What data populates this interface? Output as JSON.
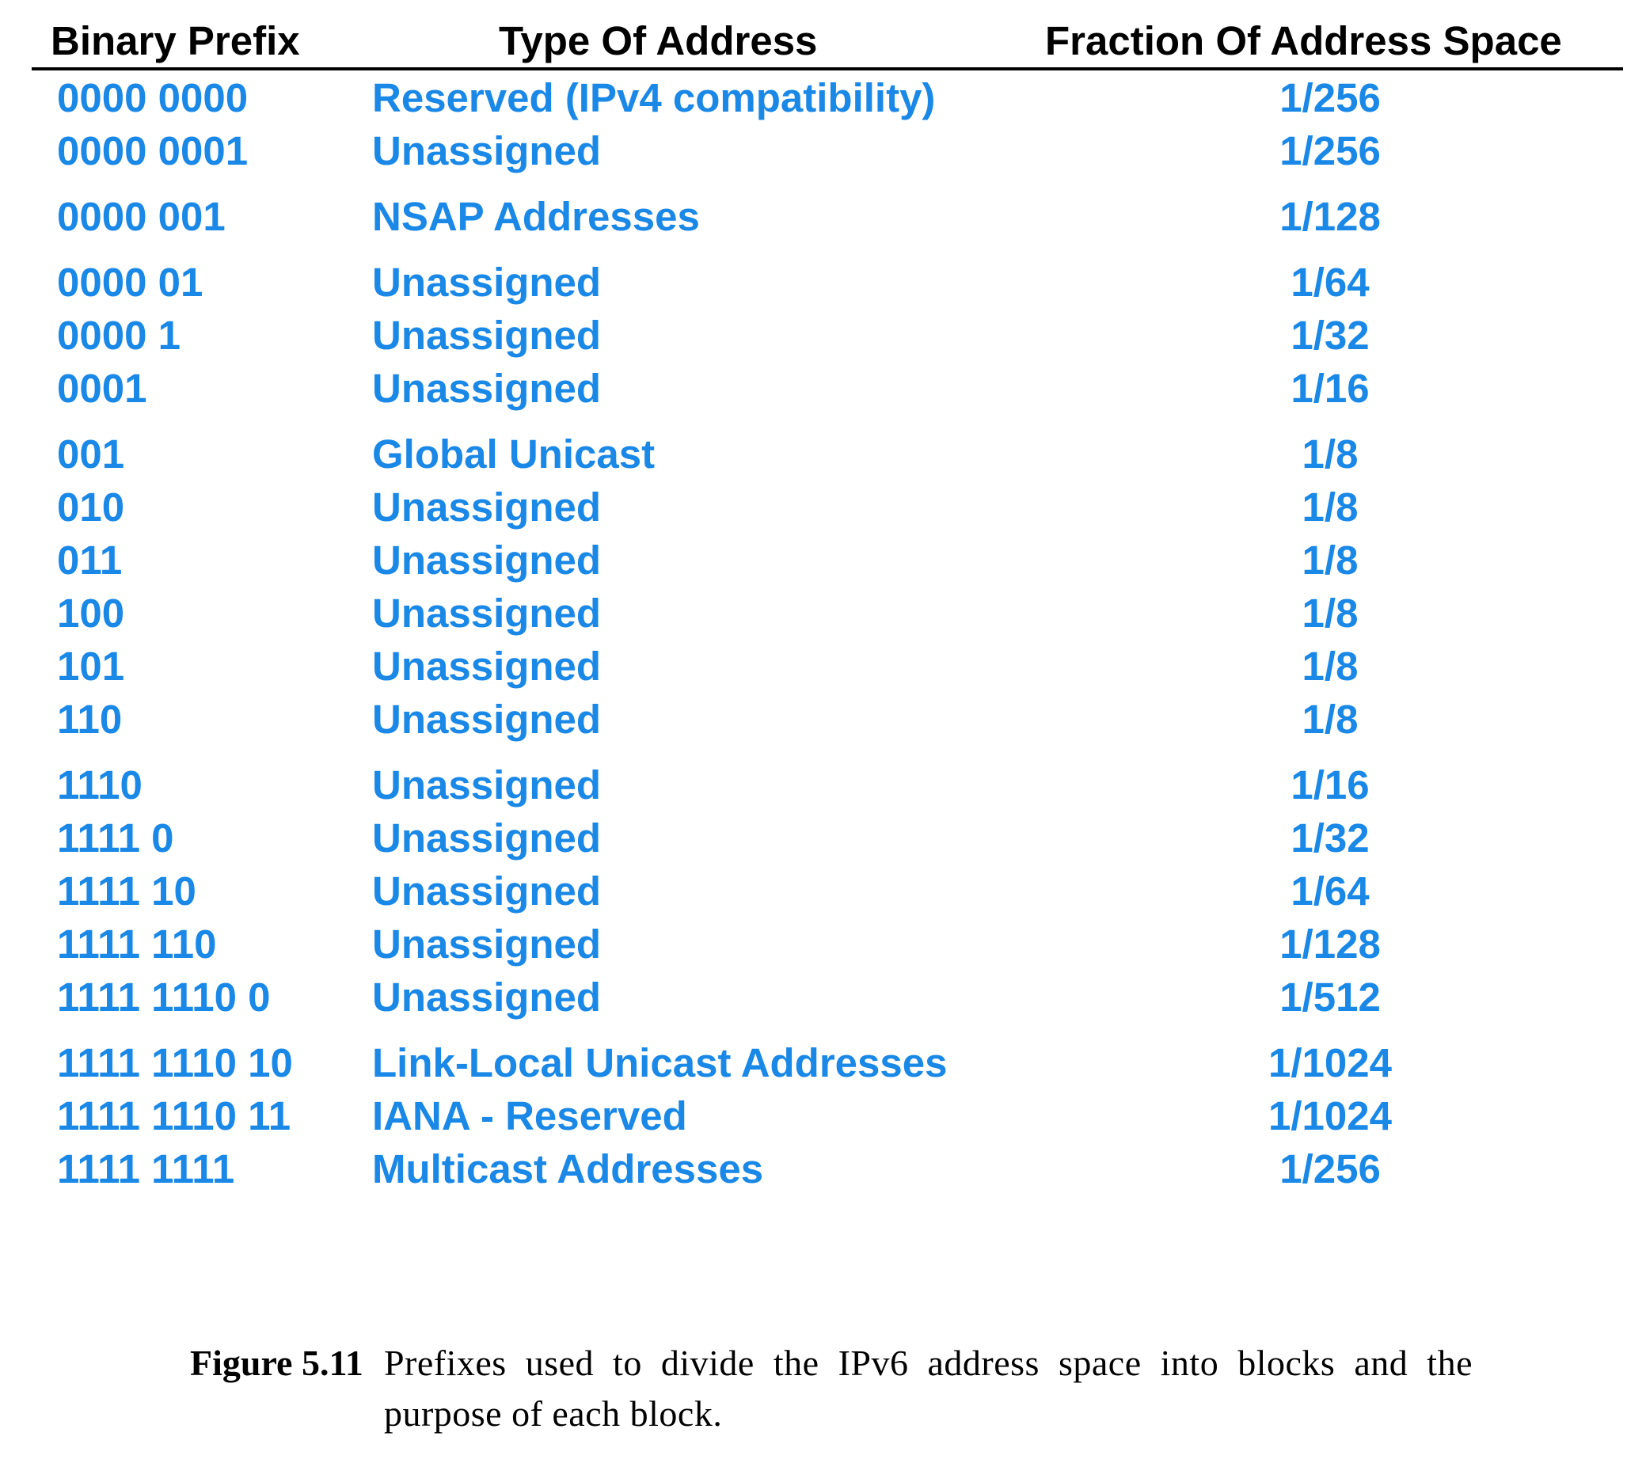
{
  "headers": {
    "prefix": "Binary Prefix",
    "type": "Type Of Address",
    "fraction": "Fraction Of Address Space"
  },
  "groups": [
    [
      {
        "prefix": "0000 0000",
        "type": "Reserved (IPv4 compatibility)",
        "fraction": "1/256"
      },
      {
        "prefix": "0000 0001",
        "type": "Unassigned",
        "fraction": "1/256"
      }
    ],
    [
      {
        "prefix": "0000 001",
        "type": "NSAP Addresses",
        "fraction": "1/128"
      }
    ],
    [
      {
        "prefix": "0000 01",
        "type": "Unassigned",
        "fraction": "1/64"
      },
      {
        "prefix": "0000 1",
        "type": "Unassigned",
        "fraction": "1/32"
      },
      {
        "prefix": "0001",
        "type": "Unassigned",
        "fraction": "1/16"
      }
    ],
    [
      {
        "prefix": "001",
        "type": "Global Unicast",
        "fraction": "1/8"
      },
      {
        "prefix": "010",
        "type": "Unassigned",
        "fraction": "1/8"
      },
      {
        "prefix": "011",
        "type": "Unassigned",
        "fraction": "1/8"
      },
      {
        "prefix": "100",
        "type": "Unassigned",
        "fraction": "1/8"
      },
      {
        "prefix": "101",
        "type": "Unassigned",
        "fraction": "1/8"
      },
      {
        "prefix": "110",
        "type": "Unassigned",
        "fraction": "1/8"
      }
    ],
    [
      {
        "prefix": "1110",
        "type": "Unassigned",
        "fraction": "1/16"
      },
      {
        "prefix": "1111 0",
        "type": "Unassigned",
        "fraction": "1/32"
      },
      {
        "prefix": "1111 10",
        "type": "Unassigned",
        "fraction": "1/64"
      },
      {
        "prefix": "1111 110",
        "type": "Unassigned",
        "fraction": "1/128"
      },
      {
        "prefix": "1111 1110 0",
        "type": "Unassigned",
        "fraction": "1/512"
      }
    ],
    [
      {
        "prefix": "1111 1110 10",
        "type": "Link-Local Unicast Addresses",
        "fraction": "1/1024"
      },
      {
        "prefix": "1111 1110 11",
        "type": "IANA - Reserved",
        "fraction": "1/1024"
      },
      {
        "prefix": "1111 1111",
        "type": "Multicast Addresses",
        "fraction": "1/256"
      }
    ]
  ],
  "caption": {
    "label": "Figure 5.11",
    "text": "Prefixes used to divide the IPv6 address space into blocks and the purpose of each block."
  },
  "colors": {
    "row_text": "#1a88e6",
    "header_text": "#000000"
  }
}
